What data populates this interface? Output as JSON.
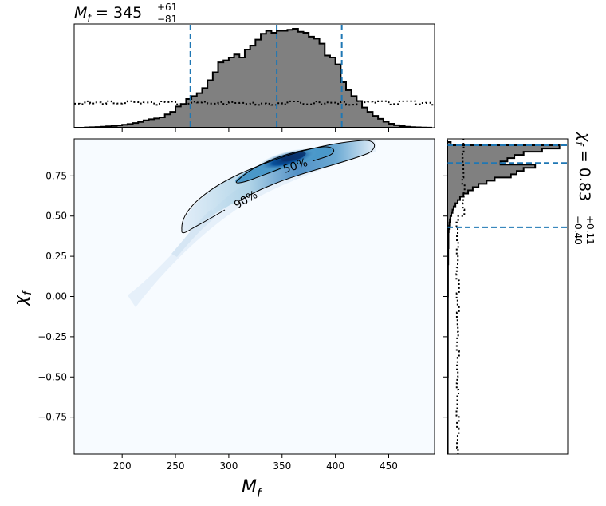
{
  "chart_data": {
    "type": "corner",
    "top_title": {
      "base": "M",
      "sub": "f",
      "eq": " = 345",
      "sup": "+61",
      "low": "−81"
    },
    "right_title": {
      "base": "χ",
      "sub": "f",
      "eq": " = 0.83",
      "sup": "+0.11",
      "low": "−0.40"
    },
    "xlabel": {
      "base": "M",
      "sub": "f"
    },
    "ylabel": {
      "base": "χ",
      "sub": "f"
    },
    "xlim": [
      155,
      493
    ],
    "ylim": [
      -0.98,
      0.98
    ],
    "x_ticks": [
      {
        "v": 200,
        "label": "200"
      },
      {
        "v": 250,
        "label": "250"
      },
      {
        "v": 300,
        "label": "300"
      },
      {
        "v": 350,
        "label": "350"
      },
      {
        "v": 400,
        "label": "400"
      },
      {
        "v": 450,
        "label": "450"
      }
    ],
    "y_ticks": [
      {
        "v": 0.75,
        "label": "0.75"
      },
      {
        "v": 0.5,
        "label": "0.50"
      },
      {
        "v": 0.25,
        "label": "0.25"
      },
      {
        "v": 0.0,
        "label": "0.00"
      },
      {
        "v": -0.25,
        "label": "−0.25"
      },
      {
        "v": -0.5,
        "label": "−0.50"
      },
      {
        "v": -0.75,
        "label": "−0.75"
      }
    ],
    "mf_median": 345,
    "mf_lower": 264,
    "mf_upper": 406,
    "chi_median": 0.83,
    "chi_lower": 0.43,
    "chi_upper": 0.94,
    "contours": [
      {
        "label": "90%"
      },
      {
        "label": "50%"
      }
    ],
    "mf_hist_posterior": [
      [
        155,
        0
      ],
      [
        160,
        0
      ],
      [
        165,
        0.003
      ],
      [
        170,
        0.005
      ],
      [
        175,
        0.007
      ],
      [
        180,
        0.01
      ],
      [
        185,
        0.014
      ],
      [
        190,
        0.018
      ],
      [
        195,
        0.024
      ],
      [
        200,
        0.03
      ],
      [
        205,
        0.037
      ],
      [
        210,
        0.047
      ],
      [
        215,
        0.058
      ],
      [
        220,
        0.075
      ],
      [
        225,
        0.086
      ],
      [
        230,
        0.094
      ],
      [
        235,
        0.105
      ],
      [
        240,
        0.135
      ],
      [
        245,
        0.16
      ],
      [
        250,
        0.215
      ],
      [
        255,
        0.24
      ],
      [
        260,
        0.29
      ],
      [
        265,
        0.32
      ],
      [
        270,
        0.35
      ],
      [
        275,
        0.4
      ],
      [
        280,
        0.48
      ],
      [
        285,
        0.56
      ],
      [
        290,
        0.66
      ],
      [
        295,
        0.68
      ],
      [
        300,
        0.71
      ],
      [
        305,
        0.74
      ],
      [
        310,
        0.71
      ],
      [
        315,
        0.79
      ],
      [
        320,
        0.83
      ],
      [
        325,
        0.89
      ],
      [
        330,
        0.95
      ],
      [
        335,
        0.98
      ],
      [
        340,
        0.96
      ],
      [
        345,
        0.98
      ],
      [
        350,
        0.98
      ],
      [
        355,
        0.99
      ],
      [
        360,
        1.0
      ],
      [
        365,
        0.97
      ],
      [
        370,
        0.96
      ],
      [
        375,
        0.92
      ],
      [
        380,
        0.9
      ],
      [
        385,
        0.85
      ],
      [
        390,
        0.73
      ],
      [
        395,
        0.71
      ],
      [
        400,
        0.64
      ],
      [
        405,
        0.46
      ],
      [
        410,
        0.38
      ],
      [
        415,
        0.32
      ],
      [
        420,
        0.27
      ],
      [
        425,
        0.205
      ],
      [
        430,
        0.16
      ],
      [
        435,
        0.12
      ],
      [
        440,
        0.09
      ],
      [
        445,
        0.06
      ],
      [
        450,
        0.04
      ],
      [
        455,
        0.025
      ],
      [
        460,
        0.016
      ],
      [
        465,
        0.01
      ],
      [
        470,
        0.006
      ],
      [
        475,
        0.004
      ],
      [
        480,
        0.002
      ],
      [
        485,
        0.001
      ]
    ],
    "mf_prior_level": 0.25,
    "chi_hist_posterior": [
      [
        0.975,
        0
      ],
      [
        0.96,
        0.03
      ],
      [
        0.94,
        0.97
      ],
      [
        0.92,
        0.82
      ],
      [
        0.9,
        0.66
      ],
      [
        0.88,
        0.58
      ],
      [
        0.86,
        0.52
      ],
      [
        0.84,
        0.46
      ],
      [
        0.82,
        0.76
      ],
      [
        0.8,
        0.66
      ],
      [
        0.78,
        0.6
      ],
      [
        0.76,
        0.55
      ],
      [
        0.74,
        0.41
      ],
      [
        0.72,
        0.34
      ],
      [
        0.7,
        0.27
      ],
      [
        0.68,
        0.22
      ],
      [
        0.66,
        0.18
      ],
      [
        0.64,
        0.14
      ],
      [
        0.62,
        0.11
      ],
      [
        0.6,
        0.09
      ],
      [
        0.58,
        0.07
      ],
      [
        0.56,
        0.055
      ],
      [
        0.54,
        0.045
      ],
      [
        0.52,
        0.035
      ],
      [
        0.5,
        0.028
      ],
      [
        0.48,
        0.022
      ],
      [
        0.46,
        0.018
      ],
      [
        0.44,
        0.015
      ],
      [
        0.42,
        0.012
      ],
      [
        0.4,
        0.01
      ],
      [
        0.3,
        0.008
      ],
      [
        0.2,
        0.006
      ],
      [
        0,
        0.005
      ],
      [
        -0.5,
        0.004
      ],
      [
        -0.98,
        0.003
      ]
    ],
    "chi_prior_level": 0.09
  }
}
